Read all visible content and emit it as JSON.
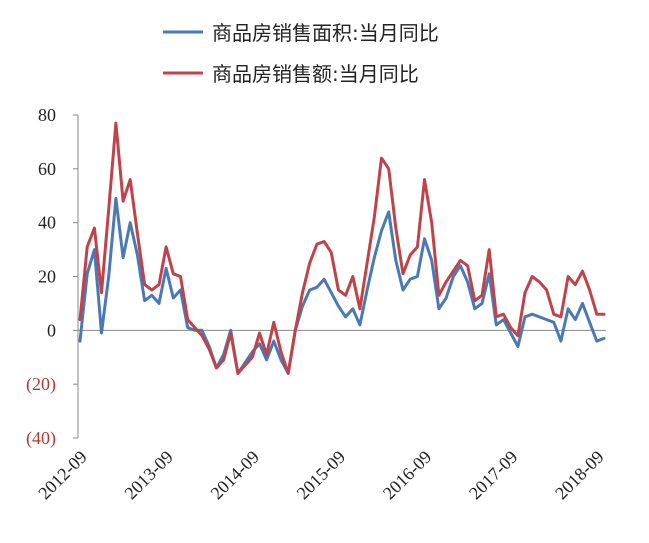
{
  "chart_data": {
    "type": "line",
    "title": "",
    "xlabel": "",
    "ylabel": "",
    "ylim": [
      -40,
      80
    ],
    "y_ticks": [
      80,
      60,
      40,
      20,
      0,
      -20,
      -40
    ],
    "y_tick_labels": [
      "80",
      "60",
      "40",
      "20",
      "0",
      "(20)",
      "(40)"
    ],
    "negative_label_color": "#b03a3a",
    "positive_label_color": "#222222",
    "x_tick_labels": [
      "2012-09",
      "2013-09",
      "2014-09",
      "2015-09",
      "2016-09",
      "2017-09",
      "2018-09"
    ],
    "x_tick_indices": [
      0,
      12,
      24,
      36,
      48,
      60,
      72
    ],
    "grid": false,
    "legend_position": "top-center",
    "series": [
      {
        "name": "商品房销售面积:当月同比",
        "color": "#4a7ab5",
        "values": [
          -4,
          21,
          30,
          -1,
          20,
          49,
          27,
          40,
          28,
          11,
          13,
          10,
          23,
          12,
          15,
          1,
          0,
          0,
          -6,
          -14,
          -9,
          0,
          -16,
          -12,
          -8,
          -5,
          -11,
          -4,
          -11,
          -16,
          0,
          9,
          15,
          16,
          19,
          14,
          9,
          5,
          8,
          2,
          15,
          27,
          37,
          44,
          26,
          15,
          19,
          20,
          34,
          26,
          8,
          12,
          20,
          24,
          18,
          8,
          10,
          21,
          2,
          4,
          -1,
          -6,
          5,
          6,
          5,
          4,
          3,
          -4,
          8,
          4,
          10,
          3,
          -4,
          -3
        ]
      },
      {
        "name": "商品房销售额:当月同比",
        "color": "#c0434a",
        "values": [
          4,
          31,
          38,
          14,
          45,
          77,
          48,
          56,
          36,
          17,
          15,
          17,
          31,
          21,
          20,
          4,
          1,
          -2,
          -7,
          -14,
          -11,
          -1,
          -16,
          -13,
          -10,
          -1,
          -9,
          3,
          -8,
          -16,
          0,
          14,
          25,
          32,
          33,
          29,
          15,
          13,
          20,
          8,
          25,
          42,
          64,
          60,
          38,
          21,
          28,
          31,
          56,
          40,
          13,
          18,
          22,
          26,
          24,
          11,
          13,
          30,
          5,
          6,
          1,
          -2,
          14,
          20,
          18,
          15,
          6,
          5,
          20,
          17,
          22,
          15,
          6,
          6
        ]
      }
    ]
  }
}
